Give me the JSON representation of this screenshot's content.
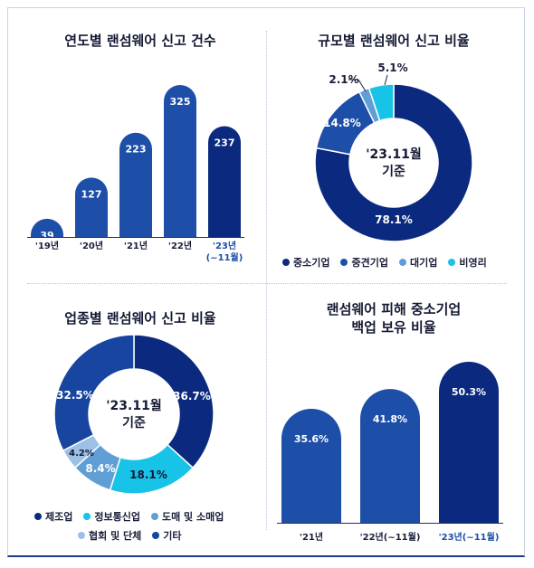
{
  "colors": {
    "navy": "#0b2a7f",
    "blue": "#1d4fa8",
    "lightblue": "#5f9fd6",
    "cyan": "#17c3e6",
    "paleblue": "#9ec0e6",
    "darkblue": "#1745a0"
  },
  "chart_data": [
    {
      "type": "bar",
      "title": "연도별 랜섬웨어 신고 건수",
      "categories": [
        "'19년",
        "'20년",
        "'21년",
        "'22년",
        "'23년"
      ],
      "category_sub": [
        "",
        "",
        "",
        "",
        "(~11월)"
      ],
      "values": [
        39,
        127,
        223,
        325,
        237
      ],
      "ylim": [
        0,
        325
      ]
    },
    {
      "type": "pie",
      "title": "규모별 랜섬웨어 신고 비율",
      "center_label": [
        "'23.11월",
        "기준"
      ],
      "labels": [
        "중소기업",
        "중견기업",
        "대기업",
        "비영리"
      ],
      "values": [
        78.1,
        14.8,
        2.1,
        5.1
      ],
      "value_labels": [
        "78.1%",
        "14.8%",
        "2.1%",
        "5.1%"
      ]
    },
    {
      "type": "pie",
      "title": "업종별 랜섬웨어 신고 비율",
      "center_label": [
        "'23.11월",
        "기준"
      ],
      "labels": [
        "제조업",
        "정보통신업",
        "도매 및 소매업",
        "협회 및 단체",
        "기타"
      ],
      "values": [
        36.7,
        18.1,
        8.4,
        4.2,
        32.5
      ],
      "value_labels": [
        "36.7%",
        "18.1%",
        "8.4%",
        "4.2%",
        "32.5%"
      ]
    },
    {
      "type": "bar",
      "title": [
        "랜섬웨어 피해 중소기업",
        "백업 보유 비율"
      ],
      "categories": [
        "'21년",
        "'22년(~11월)",
        "'23년(~11월)"
      ],
      "values": [
        35.6,
        41.8,
        50.3
      ],
      "value_labels": [
        "35.6%",
        "41.8%",
        "50.3%"
      ],
      "ylim": [
        0,
        50.3
      ]
    }
  ]
}
